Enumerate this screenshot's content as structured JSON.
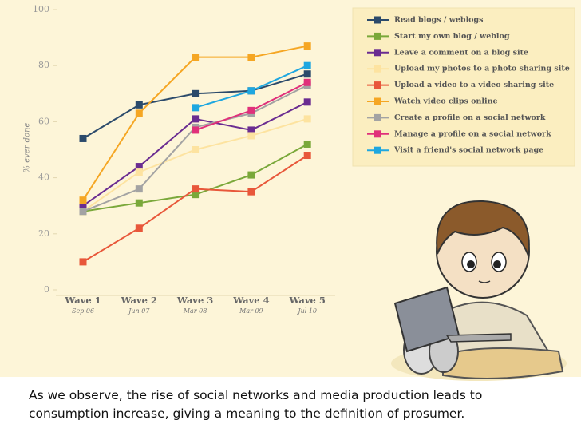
{
  "chart_data": {
    "type": "line",
    "y_label": "% ever done",
    "categories": [
      "Wave 1",
      "Wave 2",
      "Wave 3",
      "Wave 4",
      "Wave 5"
    ],
    "category_dates": [
      "Sep 06",
      "Jun 07",
      "Mar 08",
      "Mar 09",
      "Jul 10"
    ],
    "ylim": [
      0,
      100
    ],
    "yticks": [
      0,
      20,
      40,
      60,
      80,
      100
    ],
    "series": [
      {
        "name": "Read blogs / weblogs",
        "color": "#2b4a6b",
        "values": [
          54,
          66,
          70,
          71,
          77
        ]
      },
      {
        "name": "Start my own blog / weblog",
        "color": "#7aa83a",
        "values": [
          28,
          31,
          34,
          41,
          52
        ]
      },
      {
        "name": "Leave a comment on a blog site",
        "color": "#6a2c91",
        "values": [
          30,
          44,
          61,
          57,
          67
        ]
      },
      {
        "name": "Upload my photos to a  photo sharing site",
        "color": "#fde3a0",
        "values": [
          28,
          42,
          50,
          55,
          61
        ]
      },
      {
        "name": "Upload a video to a video sharing site",
        "color": "#e8573a",
        "values": [
          10,
          22,
          36,
          35,
          48
        ]
      },
      {
        "name": "Watch video clips online",
        "color": "#f5a623",
        "values": [
          32,
          63,
          83,
          83,
          87
        ]
      },
      {
        "name": "Create a profile on a social network",
        "color": "#a3a3a3",
        "values": [
          28,
          36,
          58,
          63,
          73
        ]
      },
      {
        "name": "Manage a profile on a social network",
        "color": "#e0307a",
        "values": [
          null,
          null,
          57,
          64,
          74
        ]
      },
      {
        "name": "Visit a friend's social network page",
        "color": "#1ea7e0",
        "values": [
          null,
          null,
          65,
          71,
          80
        ]
      }
    ]
  },
  "caption": [
    "As we observe, the rise of social networks and media production leads to",
    "consumption increase, giving a meaning to the definition of prosumer."
  ]
}
